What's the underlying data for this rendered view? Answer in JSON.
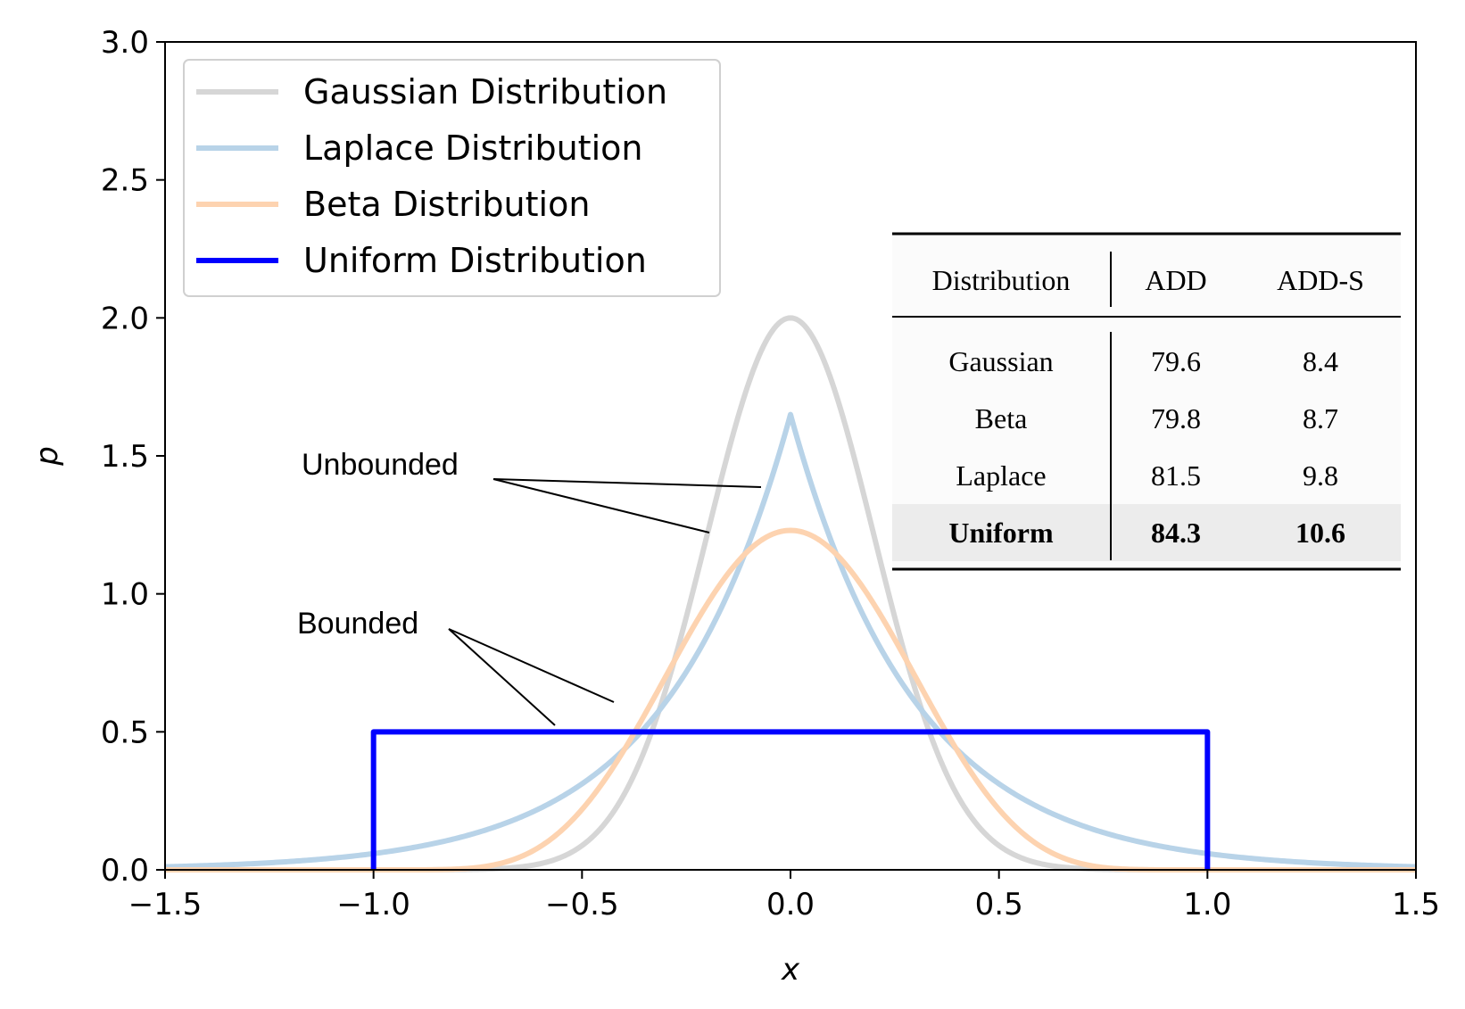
{
  "chart_data": {
    "type": "line",
    "xlabel": "x",
    "ylabel": "p",
    "xlim": [
      -1.5,
      1.5
    ],
    "ylim": [
      0.0,
      3.0
    ],
    "xticks": [
      "−1.5",
      "−1.0",
      "−0.5",
      "0.0",
      "0.5",
      "1.0",
      "1.5"
    ],
    "xtick_values": [
      -1.5,
      -1.0,
      -0.5,
      0.0,
      0.5,
      1.0,
      1.5
    ],
    "yticks": [
      "0.0",
      "0.5",
      "1.0",
      "1.5",
      "2.0",
      "2.5",
      "3.0"
    ],
    "ytick_values": [
      0.0,
      0.5,
      1.0,
      1.5,
      2.0,
      2.5,
      3.0
    ],
    "legend_position": "top-left",
    "series": [
      {
        "name": "Gaussian Distribution",
        "color": "#d6d6d6",
        "kind": "gaussian",
        "mean": 0.0,
        "sigma": 0.2,
        "peak": 2.0
      },
      {
        "name": "Laplace Distribution",
        "color": "#b8d3e8",
        "kind": "laplace",
        "mean": 0.0,
        "scale": 0.3,
        "peak": 1.65
      },
      {
        "name": "Beta Distribution",
        "color": "#fdd3b0",
        "kind": "beta-like",
        "mean": 0.0,
        "peak": 1.23
      },
      {
        "name": "Uniform Distribution",
        "color": "#0000ff",
        "kind": "uniform",
        "low": -1.0,
        "high": 1.0,
        "height": 0.5
      }
    ],
    "annotations": [
      {
        "label": "Unbounded",
        "points_to": [
          "Laplace Distribution",
          "Gaussian Distribution"
        ]
      },
      {
        "label": "Bounded",
        "points_to": [
          "Beta Distribution",
          "Uniform Distribution"
        ]
      }
    ],
    "inset_table": {
      "headers": [
        "Distribution",
        "ADD",
        "ADD-S"
      ],
      "rows": [
        {
          "cells": [
            "Gaussian",
            "79.6",
            "8.4"
          ],
          "bold": false
        },
        {
          "cells": [
            "Beta",
            "79.8",
            "8.7"
          ],
          "bold": false
        },
        {
          "cells": [
            "Laplace",
            "81.5",
            "9.8"
          ],
          "bold": false
        },
        {
          "cells": [
            "Uniform",
            "84.3",
            "10.6"
          ],
          "bold": true
        }
      ]
    }
  }
}
